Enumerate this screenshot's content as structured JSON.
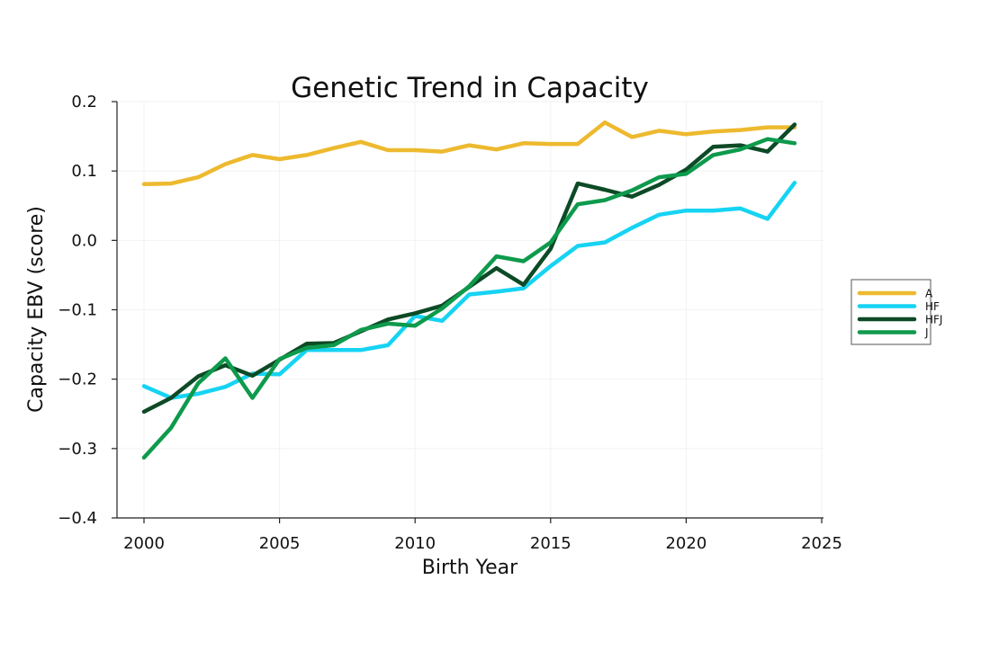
{
  "chart_data": {
    "type": "line",
    "title": "Genetic Trend in Capacity",
    "xlabel": "Birth Year",
    "ylabel": "Capacity EBV (score)",
    "xlim": [
      2000,
      2025
    ],
    "ylim": [
      -0.4,
      0.2
    ],
    "xticks": [
      2000,
      2005,
      2010,
      2015,
      2020,
      2025
    ],
    "xtick_labels": [
      "2000",
      "2005",
      "2010",
      "2015",
      "2020",
      "2025"
    ],
    "yticks": [
      -0.4,
      -0.3,
      -0.2,
      -0.1,
      0.0,
      0.1,
      0.2
    ],
    "ytick_labels": [
      "−0.4",
      "−0.3",
      "−0.2",
      "−0.1",
      "0.0",
      "0.1",
      "0.2"
    ],
    "grid": true,
    "legend_position": "right",
    "x": [
      2000,
      2001,
      2002,
      2003,
      2004,
      2005,
      2006,
      2007,
      2008,
      2009,
      2010,
      2011,
      2012,
      2013,
      2014,
      2015,
      2016,
      2017,
      2018,
      2019,
      2020,
      2021,
      2022,
      2023,
      2024
    ],
    "series": [
      {
        "name": "A",
        "color": "#EDB92E",
        "values": [
          0.081,
          0.082,
          0.091,
          0.11,
          0.123,
          0.117,
          0.123,
          0.133,
          0.142,
          0.13,
          0.13,
          0.128,
          0.137,
          0.131,
          0.14,
          0.139,
          0.139,
          0.17,
          0.149,
          0.158,
          0.153,
          0.157,
          0.159,
          0.163,
          0.163
        ]
      },
      {
        "name": "HF",
        "color": "#16D3F3",
        "values": [
          -0.21,
          -0.227,
          -0.221,
          -0.211,
          -0.192,
          -0.193,
          -0.158,
          -0.158,
          -0.158,
          -0.151,
          -0.109,
          -0.116,
          -0.078,
          -0.074,
          -0.069,
          -0.037,
          -0.008,
          -0.003,
          0.018,
          0.037,
          0.043,
          0.043,
          0.046,
          0.031,
          0.083
        ]
      },
      {
        "name": "HFJ",
        "color": "#0D4A26",
        "values": [
          -0.247,
          -0.227,
          -0.196,
          -0.18,
          -0.195,
          -0.172,
          -0.149,
          -0.148,
          -0.131,
          -0.114,
          -0.105,
          -0.094,
          -0.067,
          -0.04,
          -0.064,
          -0.012,
          0.082,
          0.073,
          0.063,
          0.08,
          0.102,
          0.135,
          0.137,
          0.128,
          0.167
        ]
      },
      {
        "name": "J",
        "color": "#0E9A4C",
        "values": [
          -0.313,
          -0.27,
          -0.206,
          -0.17,
          -0.227,
          -0.171,
          -0.155,
          -0.151,
          -0.129,
          -0.12,
          -0.123,
          -0.098,
          -0.066,
          -0.023,
          -0.03,
          -0.003,
          0.052,
          0.058,
          0.072,
          0.091,
          0.096,
          0.123,
          0.131,
          0.146,
          0.14
        ]
      }
    ]
  }
}
